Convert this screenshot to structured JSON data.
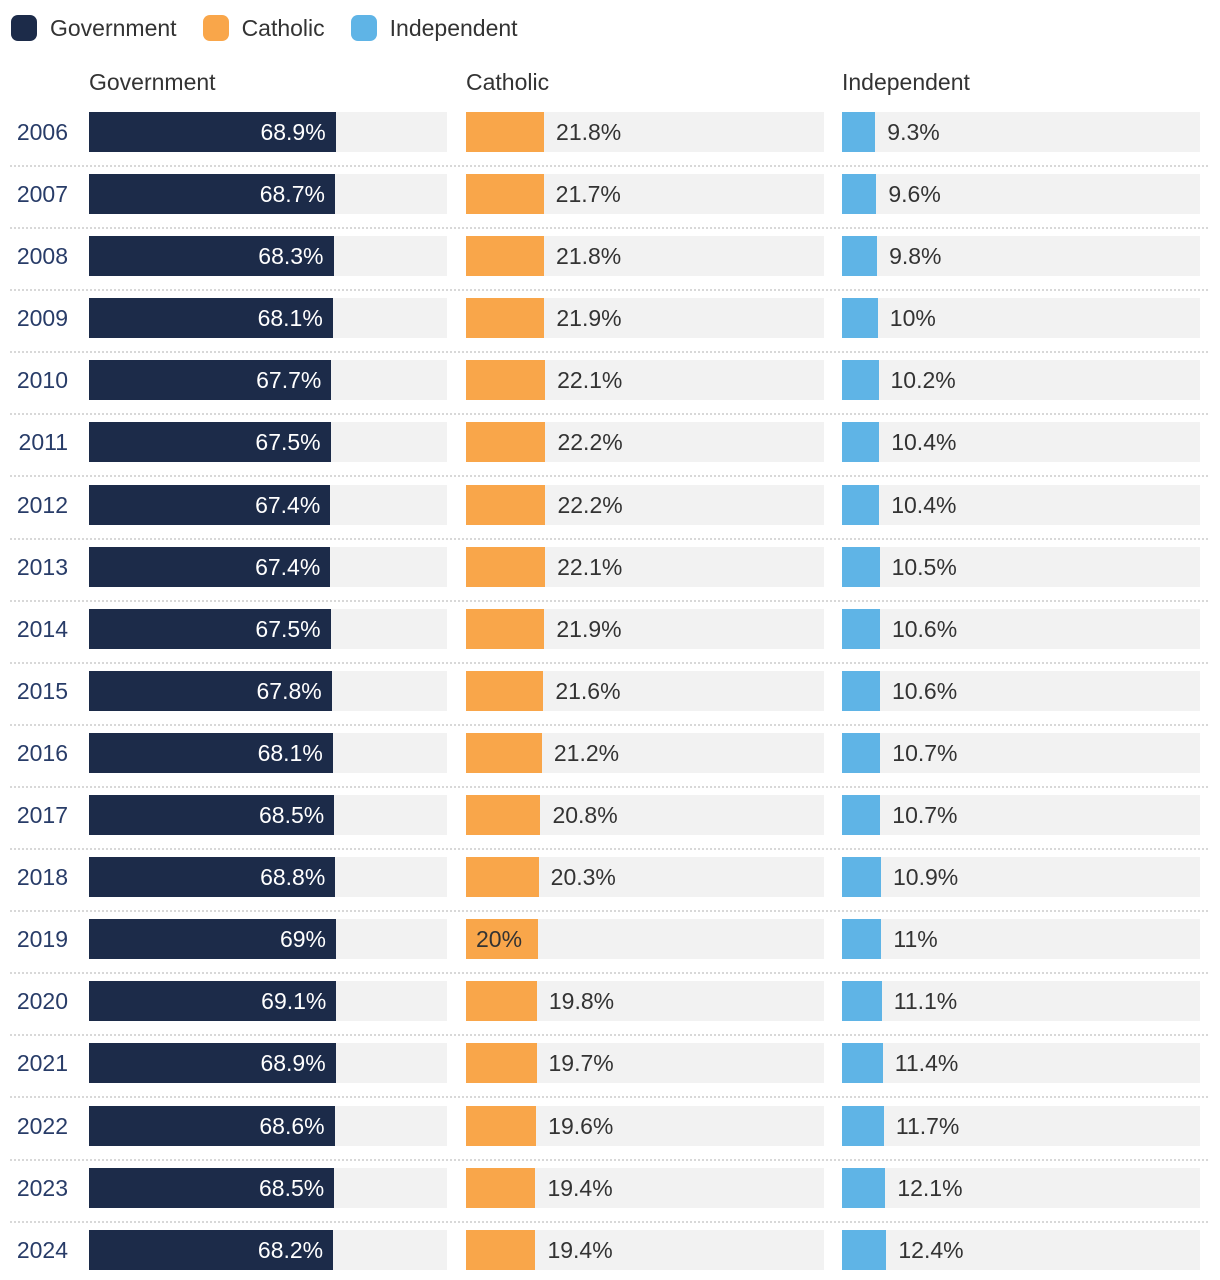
{
  "colors": {
    "government": "#1c2b49",
    "catholic": "#f9a64a",
    "independent": "#5fb4e6",
    "track": "#f2f2f2",
    "year_text": "#283c68",
    "label_text": "#333333",
    "inside_label_text": "#ffffff"
  },
  "legend": {
    "items": [
      {
        "label": "Government",
        "color_key": "government"
      },
      {
        "label": "Catholic",
        "color_key": "catholic"
      },
      {
        "label": "Independent",
        "color_key": "independent"
      }
    ]
  },
  "column_headers": {
    "government": "Government",
    "catholic": "Catholic",
    "independent": "Independent"
  },
  "axis": {
    "max": 100
  },
  "label_styles": {
    "government": "inside-right",
    "catholic": "outside",
    "independent": "outside"
  },
  "rows": [
    {
      "year": "2006",
      "government": {
        "value": 68.9,
        "label": "68.9%"
      },
      "catholic": {
        "value": 21.8,
        "label": "21.8%"
      },
      "independent": {
        "value": 9.3,
        "label": "9.3%"
      }
    },
    {
      "year": "2007",
      "government": {
        "value": 68.7,
        "label": "68.7%"
      },
      "catholic": {
        "value": 21.7,
        "label": "21.7%"
      },
      "independent": {
        "value": 9.6,
        "label": "9.6%"
      }
    },
    {
      "year": "2008",
      "government": {
        "value": 68.3,
        "label": "68.3%"
      },
      "catholic": {
        "value": 21.8,
        "label": "21.8%"
      },
      "independent": {
        "value": 9.8,
        "label": "9.8%"
      }
    },
    {
      "year": "2009",
      "government": {
        "value": 68.1,
        "label": "68.1%"
      },
      "catholic": {
        "value": 21.9,
        "label": "21.9%"
      },
      "independent": {
        "value": 10,
        "label": "10%"
      }
    },
    {
      "year": "2010",
      "government": {
        "value": 67.7,
        "label": "67.7%"
      },
      "catholic": {
        "value": 22.1,
        "label": "22.1%"
      },
      "independent": {
        "value": 10.2,
        "label": "10.2%"
      }
    },
    {
      "year": "2011",
      "government": {
        "value": 67.5,
        "label": "67.5%"
      },
      "catholic": {
        "value": 22.2,
        "label": "22.2%"
      },
      "independent": {
        "value": 10.4,
        "label": "10.4%"
      }
    },
    {
      "year": "2012",
      "government": {
        "value": 67.4,
        "label": "67.4%"
      },
      "catholic": {
        "value": 22.2,
        "label": "22.2%"
      },
      "independent": {
        "value": 10.4,
        "label": "10.4%"
      }
    },
    {
      "year": "2013",
      "government": {
        "value": 67.4,
        "label": "67.4%"
      },
      "catholic": {
        "value": 22.1,
        "label": "22.1%"
      },
      "independent": {
        "value": 10.5,
        "label": "10.5%"
      }
    },
    {
      "year": "2014",
      "government": {
        "value": 67.5,
        "label": "67.5%"
      },
      "catholic": {
        "value": 21.9,
        "label": "21.9%"
      },
      "independent": {
        "value": 10.6,
        "label": "10.6%"
      }
    },
    {
      "year": "2015",
      "government": {
        "value": 67.8,
        "label": "67.8%"
      },
      "catholic": {
        "value": 21.6,
        "label": "21.6%"
      },
      "independent": {
        "value": 10.6,
        "label": "10.6%"
      }
    },
    {
      "year": "2016",
      "government": {
        "value": 68.1,
        "label": "68.1%"
      },
      "catholic": {
        "value": 21.2,
        "label": "21.2%"
      },
      "independent": {
        "value": 10.7,
        "label": "10.7%"
      }
    },
    {
      "year": "2017",
      "government": {
        "value": 68.5,
        "label": "68.5%"
      },
      "catholic": {
        "value": 20.8,
        "label": "20.8%"
      },
      "independent": {
        "value": 10.7,
        "label": "10.7%"
      }
    },
    {
      "year": "2018",
      "government": {
        "value": 68.8,
        "label": "68.8%"
      },
      "catholic": {
        "value": 20.3,
        "label": "20.3%"
      },
      "independent": {
        "value": 10.9,
        "label": "10.9%"
      }
    },
    {
      "year": "2019",
      "government": {
        "value": 69,
        "label": "69%"
      },
      "catholic": {
        "value": 20,
        "label": "20%",
        "label_position": "inside-left"
      },
      "independent": {
        "value": 11,
        "label": "11%"
      }
    },
    {
      "year": "2020",
      "government": {
        "value": 69.1,
        "label": "69.1%"
      },
      "catholic": {
        "value": 19.8,
        "label": "19.8%"
      },
      "independent": {
        "value": 11.1,
        "label": "11.1%"
      }
    },
    {
      "year": "2021",
      "government": {
        "value": 68.9,
        "label": "68.9%"
      },
      "catholic": {
        "value": 19.7,
        "label": "19.7%"
      },
      "independent": {
        "value": 11.4,
        "label": "11.4%"
      }
    },
    {
      "year": "2022",
      "government": {
        "value": 68.6,
        "label": "68.6%"
      },
      "catholic": {
        "value": 19.6,
        "label": "19.6%"
      },
      "independent": {
        "value": 11.7,
        "label": "11.7%"
      }
    },
    {
      "year": "2023",
      "government": {
        "value": 68.5,
        "label": "68.5%"
      },
      "catholic": {
        "value": 19.4,
        "label": "19.4%"
      },
      "independent": {
        "value": 12.1,
        "label": "12.1%"
      }
    },
    {
      "year": "2024",
      "government": {
        "value": 68.2,
        "label": "68.2%"
      },
      "catholic": {
        "value": 19.4,
        "label": "19.4%"
      },
      "independent": {
        "value": 12.4,
        "label": "12.4%"
      }
    }
  ],
  "chart_data": {
    "type": "bar",
    "orientation": "horizontal",
    "categories": [
      "2006",
      "2007",
      "2008",
      "2009",
      "2010",
      "2011",
      "2012",
      "2013",
      "2014",
      "2015",
      "2016",
      "2017",
      "2018",
      "2019",
      "2020",
      "2021",
      "2022",
      "2023",
      "2024"
    ],
    "series": [
      {
        "name": "Government",
        "values": [
          68.9,
          68.7,
          68.3,
          68.1,
          67.7,
          67.5,
          67.4,
          67.4,
          67.5,
          67.8,
          68.1,
          68.5,
          68.8,
          69,
          69.1,
          68.9,
          68.6,
          68.5,
          68.2
        ]
      },
      {
        "name": "Catholic",
        "values": [
          21.8,
          21.7,
          21.8,
          21.9,
          22.1,
          22.2,
          22.2,
          22.1,
          21.9,
          21.6,
          21.2,
          20.8,
          20.3,
          20,
          19.8,
          19.7,
          19.6,
          19.4,
          19.4
        ]
      },
      {
        "name": "Independent",
        "values": [
          9.3,
          9.6,
          9.8,
          10,
          10.2,
          10.4,
          10.4,
          10.5,
          10.6,
          10.6,
          10.7,
          10.7,
          10.9,
          11,
          11.1,
          11.4,
          11.7,
          12.1,
          12.4
        ]
      }
    ],
    "value_format": "percent",
    "xlim": [
      0,
      100
    ],
    "grid": false,
    "legend_position": "top"
  }
}
